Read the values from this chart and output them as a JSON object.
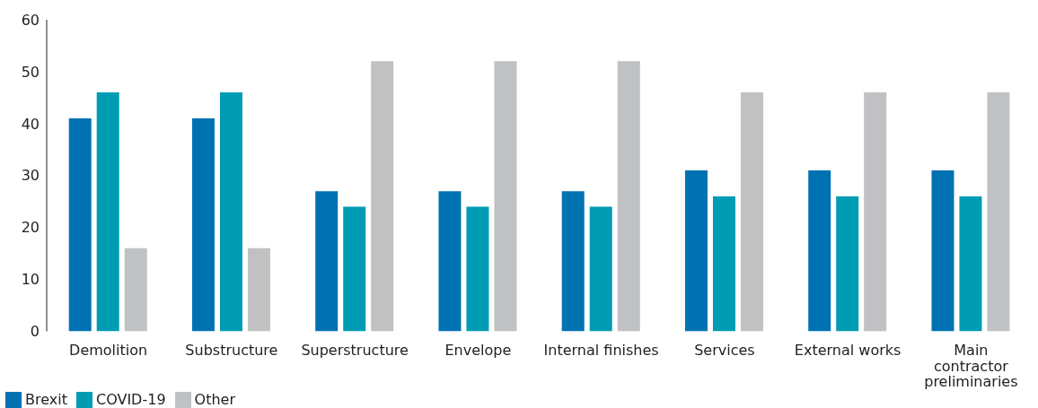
{
  "chart_data": {
    "type": "bar",
    "categories": [
      "Demolition",
      "Substructure",
      "Superstructure",
      "Envelope",
      "Internal finishes",
      "Services",
      "External works",
      "Main contractor preliminaries"
    ],
    "series": [
      {
        "name": "Brexit",
        "color": "#0072b2",
        "values": [
          41,
          41,
          27,
          27,
          27,
          31,
          31,
          31
        ]
      },
      {
        "name": "COVID-19",
        "color": "#009cb4",
        "values": [
          46,
          46,
          24,
          24,
          24,
          26,
          26,
          26
        ]
      },
      {
        "name": "Other",
        "color": "#c0c1c3",
        "values": [
          16,
          16,
          52,
          52,
          52,
          46,
          46,
          46
        ]
      }
    ],
    "ylim": [
      0,
      60
    ],
    "yticks": [
      0,
      10,
      20,
      30,
      40,
      50,
      60
    ],
    "grid": false,
    "legend": "bottom left"
  }
}
